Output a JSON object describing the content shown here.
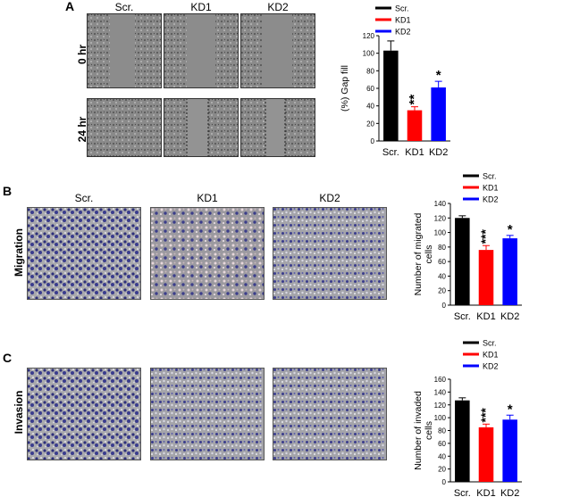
{
  "panels": {
    "a": {
      "label": "A",
      "columns": [
        "Scr.",
        "KD1",
        "KD2"
      ],
      "rows": [
        "0 hr",
        "24 hr"
      ]
    },
    "b": {
      "label": "B",
      "columns": [
        "Scr.",
        "KD1",
        "KD2"
      ],
      "row": "Migration"
    },
    "c": {
      "label": "C",
      "row": "Invasion"
    }
  },
  "colors": {
    "scr": "#000000",
    "kd1": "#ff0000",
    "kd2": "#0000ff"
  },
  "chart_data": [
    {
      "type": "bar",
      "categories": [
        "Scr.",
        "KD1",
        "KD2"
      ],
      "values": [
        103,
        35,
        61
      ],
      "errors": [
        11,
        4,
        7
      ],
      "significance": [
        "",
        "**",
        "*"
      ],
      "ylabel": "(%) Gap fill",
      "ylim": [
        0,
        120
      ],
      "yticks": [
        0,
        20,
        40,
        60,
        80,
        100,
        120
      ],
      "legend": [
        "Scr.",
        "KD1",
        "KD2"
      ],
      "legend_position": "top"
    },
    {
      "type": "bar",
      "categories": [
        "Scr.",
        "KD1",
        "KD2"
      ],
      "values": [
        120,
        76,
        92
      ],
      "errors": [
        3,
        6,
        4
      ],
      "significance": [
        "",
        "***",
        "*"
      ],
      "ylabel": "Number of migrated cells",
      "ylim": [
        0,
        140
      ],
      "yticks": [
        0,
        20,
        40,
        60,
        80,
        100,
        120,
        140
      ],
      "legend": [
        "Scr.",
        "KD1",
        "KD2"
      ],
      "legend_position": "top"
    },
    {
      "type": "bar",
      "categories": [
        "Scr.",
        "KD1",
        "KD2"
      ],
      "values": [
        127,
        85,
        97
      ],
      "errors": [
        4,
        5,
        7
      ],
      "significance": [
        "",
        "***",
        "*"
      ],
      "ylabel": "Number of invaded cells",
      "ylim": [
        0,
        160
      ],
      "yticks": [
        0,
        20,
        40,
        60,
        80,
        100,
        120,
        140,
        160
      ],
      "legend": [
        "Scr.",
        "KD1",
        "KD2"
      ],
      "legend_position": "top"
    }
  ]
}
